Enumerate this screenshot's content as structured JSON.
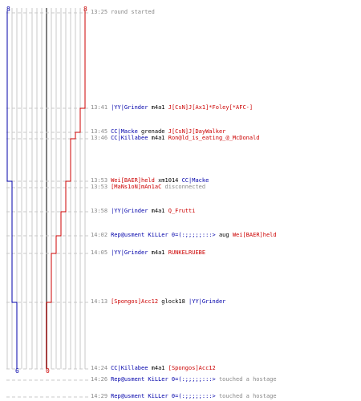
{
  "colors": {
    "red": "#cc0000",
    "blue": "#0000aa",
    "gray": "#888888",
    "grid": "#c8c8c8",
    "axis": "#808080"
  },
  "scores": {
    "blue_start": "8",
    "red_start": "8",
    "blue_end": "6",
    "red_end": "0"
  },
  "events": [
    {
      "time": "13:25",
      "parts": [
        {
          "t": "round started",
          "c": "gray"
        }
      ]
    },
    {
      "time": "13:41",
      "parts": [
        {
          "t": "|YY|Grinder",
          "c": "blue"
        },
        {
          "t": " m4a1 ",
          "c": "black"
        },
        {
          "t": "J[CsN]J[Ax1]*Foley[*AFC-]",
          "c": "red"
        }
      ]
    },
    {
      "time": "13:45",
      "parts": [
        {
          "t": "CC|Macke",
          "c": "blue"
        },
        {
          "t": " grenade ",
          "c": "black"
        },
        {
          "t": "J[CsN]J[DayWalker",
          "c": "red"
        }
      ]
    },
    {
      "time": "13:46",
      "parts": [
        {
          "t": "CC|Killabee",
          "c": "blue"
        },
        {
          "t": " m4a1 ",
          "c": "black"
        },
        {
          "t": "Ron@ld_is_eating_@_McDonald",
          "c": "red"
        }
      ]
    },
    {
      "time": "13:53",
      "parts": [
        {
          "t": "Wei[BAER]held",
          "c": "red"
        },
        {
          "t": " xm1014 ",
          "c": "black"
        },
        {
          "t": "CC|Macke",
          "c": "blue"
        }
      ]
    },
    {
      "time": "13:53",
      "parts": [
        {
          "t": "[MaNs1oN]mAn1aC",
          "c": "red"
        },
        {
          "t": " disconnected",
          "c": "gray"
        }
      ]
    },
    {
      "time": "13:58",
      "parts": [
        {
          "t": "|YY|Grinder",
          "c": "blue"
        },
        {
          "t": " m4a1 ",
          "c": "black"
        },
        {
          "t": "Q_Frutti",
          "c": "red"
        }
      ]
    },
    {
      "time": "14:02",
      "parts": [
        {
          "t": "Rep@usment KiLLer 0=(:;;;;;:::>",
          "c": "blue"
        },
        {
          "t": " aug ",
          "c": "black"
        },
        {
          "t": "Wei[BAER]held",
          "c": "red"
        }
      ]
    },
    {
      "time": "14:05",
      "parts": [
        {
          "t": "|YY|Grinder",
          "c": "blue"
        },
        {
          "t": " m4a1 ",
          "c": "black"
        },
        {
          "t": "RUNKELRUEBE",
          "c": "red"
        }
      ]
    },
    {
      "time": "14:13",
      "parts": [
        {
          "t": "[Spongos]Acc12",
          "c": "red"
        },
        {
          "t": " glock18 ",
          "c": "black"
        },
        {
          "t": "|YY|Grinder",
          "c": "blue"
        }
      ]
    },
    {
      "time": "14:24",
      "parts": [
        {
          "t": "CC|Killabee",
          "c": "blue"
        },
        {
          "t": " m4a1 ",
          "c": "black"
        },
        {
          "t": "[Spongos]Acc12",
          "c": "red"
        }
      ]
    },
    {
      "time": "14:26",
      "parts": [
        {
          "t": "Rep@usment KiLLer 0=(:;;;;;:::>",
          "c": "blue"
        },
        {
          "t": " touched a hostage",
          "c": "gray"
        }
      ]
    },
    {
      "time": "14:29",
      "parts": [
        {
          "t": "Rep@usment KiLLer 0=(:;;;;;:::>",
          "c": "blue"
        },
        {
          "t": " touched a hostage",
          "c": "gray"
        }
      ]
    }
  ]
}
